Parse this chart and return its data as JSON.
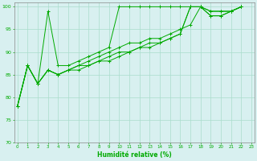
{
  "xlabel": "Humidité relative (%)",
  "background_color": "#d8f0f0",
  "grid_color": "#aaddcc",
  "line_color": "#00aa00",
  "ylim": [
    70,
    101
  ],
  "xlim": [
    -0.3,
    23.3
  ],
  "yticks": [
    70,
    75,
    80,
    85,
    90,
    95,
    100
  ],
  "xticks": [
    0,
    1,
    2,
    3,
    4,
    5,
    6,
    7,
    8,
    9,
    10,
    11,
    12,
    13,
    14,
    15,
    16,
    17,
    18,
    19,
    20,
    21,
    22,
    23
  ],
  "series": [
    [
      78,
      87,
      83,
      99,
      87,
      87,
      88,
      89,
      90,
      91,
      100,
      100,
      100,
      100,
      100,
      100,
      100,
      100,
      100,
      99,
      99,
      99,
      100
    ],
    [
      78,
      87,
      83,
      86,
      85,
      86,
      87,
      88,
      89,
      90,
      91,
      92,
      92,
      93,
      93,
      94,
      95,
      96,
      100,
      99,
      99,
      99,
      100
    ],
    [
      78,
      87,
      83,
      86,
      85,
      86,
      87,
      87,
      88,
      89,
      90,
      90,
      91,
      92,
      92,
      93,
      94,
      100,
      100,
      98,
      98,
      99,
      100
    ],
    [
      78,
      87,
      83,
      86,
      85,
      86,
      86,
      87,
      88,
      88,
      89,
      90,
      91,
      91,
      92,
      93,
      94,
      100,
      100,
      98,
      98,
      99,
      100
    ]
  ]
}
